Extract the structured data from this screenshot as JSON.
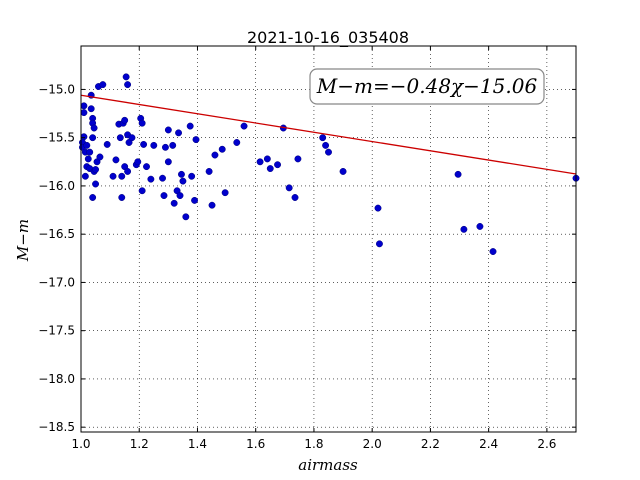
{
  "chart_data": {
    "type": "scatter",
    "title": "2021-10-16_035408",
    "xlabel": "airmass",
    "ylabel": "M−m",
    "xlim": [
      1.0,
      2.7
    ],
    "ylim": [
      -18.55,
      -14.55
    ],
    "y_inverted": true,
    "grid": true,
    "xticks": [
      1.0,
      1.2,
      1.4,
      1.6,
      1.8,
      2.0,
      2.2,
      2.4,
      2.6
    ],
    "xtick_labels": [
      "1.0",
      "1.2",
      "1.4",
      "1.6",
      "1.8",
      "2.0",
      "2.2",
      "2.4",
      "2.6"
    ],
    "yticks": [
      -15.0,
      -15.5,
      -16.0,
      -16.5,
      -17.0,
      -17.5,
      -18.0,
      -18.5
    ],
    "ytick_labels": [
      "−15.0",
      "−15.5",
      "−16.0",
      "−16.5",
      "−17.0",
      "−17.5",
      "−18.0",
      "−18.5"
    ],
    "annotation": "M−m=−0.48χ−15.06",
    "annotation_position": "top-right",
    "fit": {
      "slope": -0.48,
      "intercept": -15.06,
      "color": "#cc0000"
    },
    "point_color": "#0000cc",
    "points": [
      [
        1.005,
        -15.55
      ],
      [
        1.005,
        -15.6
      ],
      [
        1.01,
        -15.17
      ],
      [
        1.01,
        -15.24
      ],
      [
        1.01,
        -15.49
      ],
      [
        1.015,
        -15.65
      ],
      [
        1.015,
        -15.9
      ],
      [
        1.02,
        -15.58
      ],
      [
        1.02,
        -15.8
      ],
      [
        1.025,
        -15.72
      ],
      [
        1.03,
        -15.65
      ],
      [
        1.03,
        -15.82
      ],
      [
        1.035,
        -15.2
      ],
      [
        1.035,
        -15.06
      ],
      [
        1.04,
        -15.3
      ],
      [
        1.04,
        -15.35
      ],
      [
        1.04,
        -15.5
      ],
      [
        1.045,
        -15.4
      ],
      [
        1.045,
        -15.85
      ],
      [
        1.04,
        -16.12
      ],
      [
        1.05,
        -15.98
      ],
      [
        1.05,
        -15.83
      ],
      [
        1.055,
        -15.75
      ],
      [
        1.06,
        -14.97
      ],
      [
        1.065,
        -15.7
      ],
      [
        1.075,
        -14.95
      ],
      [
        1.09,
        -15.57
      ],
      [
        1.11,
        -15.9
      ],
      [
        1.12,
        -15.73
      ],
      [
        1.13,
        -15.36
      ],
      [
        1.135,
        -15.5
      ],
      [
        1.14,
        -15.9
      ],
      [
        1.14,
        -16.12
      ],
      [
        1.145,
        -15.35
      ],
      [
        1.15,
        -15.32
      ],
      [
        1.15,
        -15.8
      ],
      [
        1.155,
        -14.87
      ],
      [
        1.16,
        -14.95
      ],
      [
        1.16,
        -15.47
      ],
      [
        1.16,
        -15.85
      ],
      [
        1.165,
        -15.55
      ],
      [
        1.175,
        -15.5
      ],
      [
        1.19,
        -15.78
      ],
      [
        1.195,
        -15.75
      ],
      [
        1.205,
        -15.3
      ],
      [
        1.21,
        -15.35
      ],
      [
        1.21,
        -16.05
      ],
      [
        1.215,
        -15.57
      ],
      [
        1.225,
        -15.8
      ],
      [
        1.24,
        -15.93
      ],
      [
        1.25,
        -15.58
      ],
      [
        1.28,
        -15.92
      ],
      [
        1.285,
        -16.1
      ],
      [
        1.29,
        -15.6
      ],
      [
        1.3,
        -15.42
      ],
      [
        1.3,
        -15.75
      ],
      [
        1.315,
        -15.58
      ],
      [
        1.32,
        -16.18
      ],
      [
        1.33,
        -16.05
      ],
      [
        1.335,
        -15.45
      ],
      [
        1.34,
        -16.1
      ],
      [
        1.345,
        -15.88
      ],
      [
        1.35,
        -15.95
      ],
      [
        1.36,
        -16.32
      ],
      [
        1.375,
        -15.38
      ],
      [
        1.38,
        -15.9
      ],
      [
        1.39,
        -16.15
      ],
      [
        1.395,
        -15.52
      ],
      [
        1.44,
        -15.85
      ],
      [
        1.45,
        -16.2
      ],
      [
        1.46,
        -15.68
      ],
      [
        1.485,
        -15.62
      ],
      [
        1.495,
        -16.07
      ],
      [
        1.535,
        -15.55
      ],
      [
        1.56,
        -15.38
      ],
      [
        1.615,
        -15.75
      ],
      [
        1.64,
        -15.72
      ],
      [
        1.65,
        -15.82
      ],
      [
        1.675,
        -15.78
      ],
      [
        1.695,
        -15.4
      ],
      [
        1.715,
        -16.02
      ],
      [
        1.735,
        -16.12
      ],
      [
        1.745,
        -15.72
      ],
      [
        1.83,
        -15.5
      ],
      [
        1.84,
        -15.58
      ],
      [
        1.85,
        -15.65
      ],
      [
        1.9,
        -15.85
      ],
      [
        2.02,
        -16.23
      ],
      [
        2.025,
        -16.6
      ],
      [
        2.295,
        -15.88
      ],
      [
        2.315,
        -16.45
      ],
      [
        2.37,
        -16.42
      ],
      [
        2.415,
        -16.68
      ],
      [
        2.7,
        -15.92
      ]
    ]
  }
}
